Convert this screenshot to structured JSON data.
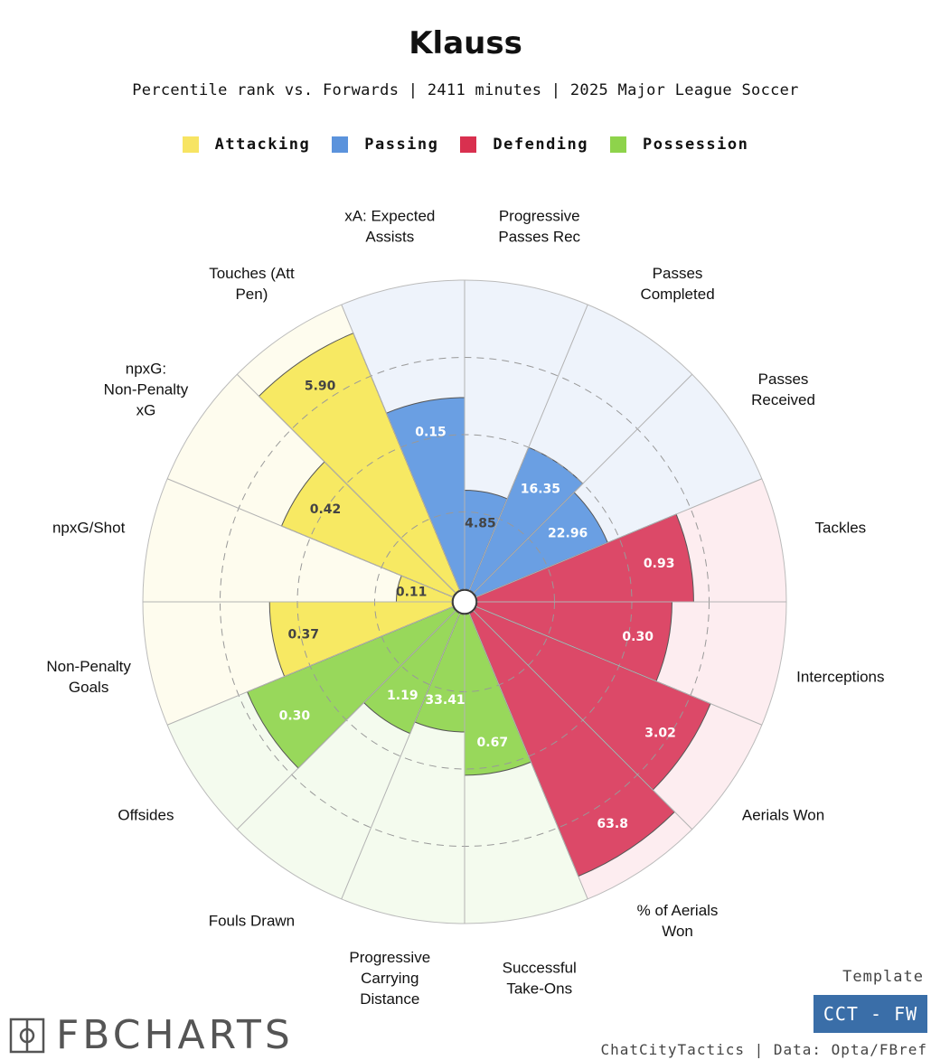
{
  "header": {
    "title": "Klauss",
    "subtitle": "Percentile rank vs. Forwards | 2411 minutes | 2025 Major League Soccer"
  },
  "legend": [
    {
      "label": "Attacking",
      "color": "#f7e463"
    },
    {
      "label": "Passing",
      "color": "#5b93dc"
    },
    {
      "label": "Defending",
      "color": "#d9304f"
    },
    {
      "label": "Possession",
      "color": "#8ed34b"
    }
  ],
  "chart_data": {
    "type": "polar-bar",
    "title": "Klauss",
    "value_scale": "percentile (0-100)",
    "gridlines": [
      25,
      50,
      75
    ],
    "slices": [
      {
        "label": "Progressive Passes Rec",
        "category": "Passing",
        "percentile": 32,
        "display": "4.85"
      },
      {
        "label": "Passes Completed",
        "category": "Passing",
        "percentile": 50,
        "display": "16.35"
      },
      {
        "label": "Passes Received",
        "category": "Passing",
        "percentile": 46,
        "display": "22.96"
      },
      {
        "label": "Tackles",
        "category": "Defending",
        "percentile": 70,
        "display": "0.93"
      },
      {
        "label": "Interceptions",
        "category": "Defending",
        "percentile": 63,
        "display": "0.30"
      },
      {
        "label": "Aerials Won",
        "category": "Defending",
        "percentile": 82,
        "display": "3.02"
      },
      {
        "label": "% of Aerials Won",
        "category": "Defending",
        "percentile": 92,
        "display": "63.8"
      },
      {
        "label": "Successful Take-Ons",
        "category": "Possession",
        "percentile": 52,
        "display": "0.67"
      },
      {
        "label": "Progressive Carrying Distance",
        "category": "Possession",
        "percentile": 38,
        "display": "33.41"
      },
      {
        "label": "Fouls Drawn",
        "category": "Possession",
        "percentile": 42,
        "display": "1.19"
      },
      {
        "label": "Offsides",
        "category": "Possession",
        "percentile": 72,
        "display": "0.30"
      },
      {
        "label": "Non-Penalty Goals",
        "category": "Attacking",
        "percentile": 59,
        "display": "0.37"
      },
      {
        "label": "npxG/Shot",
        "category": "Attacking",
        "percentile": 18,
        "display": "0.11"
      },
      {
        "label": "npxG: Non-Penalty xG",
        "category": "Attacking",
        "percentile": 60,
        "display": "0.42"
      },
      {
        "label": "Touches (Att Pen)",
        "category": "Attacking",
        "percentile": 90,
        "display": "5.90"
      },
      {
        "label": "xA: Expected Assists",
        "category": "Passing",
        "percentile": 62,
        "display": "0.15"
      }
    ]
  },
  "footer": {
    "template_label": "Template",
    "template_name": "CCT - FW",
    "credit": "ChatCityTactics | Data: Opta/FBref",
    "brand": "FBCHARTS"
  }
}
